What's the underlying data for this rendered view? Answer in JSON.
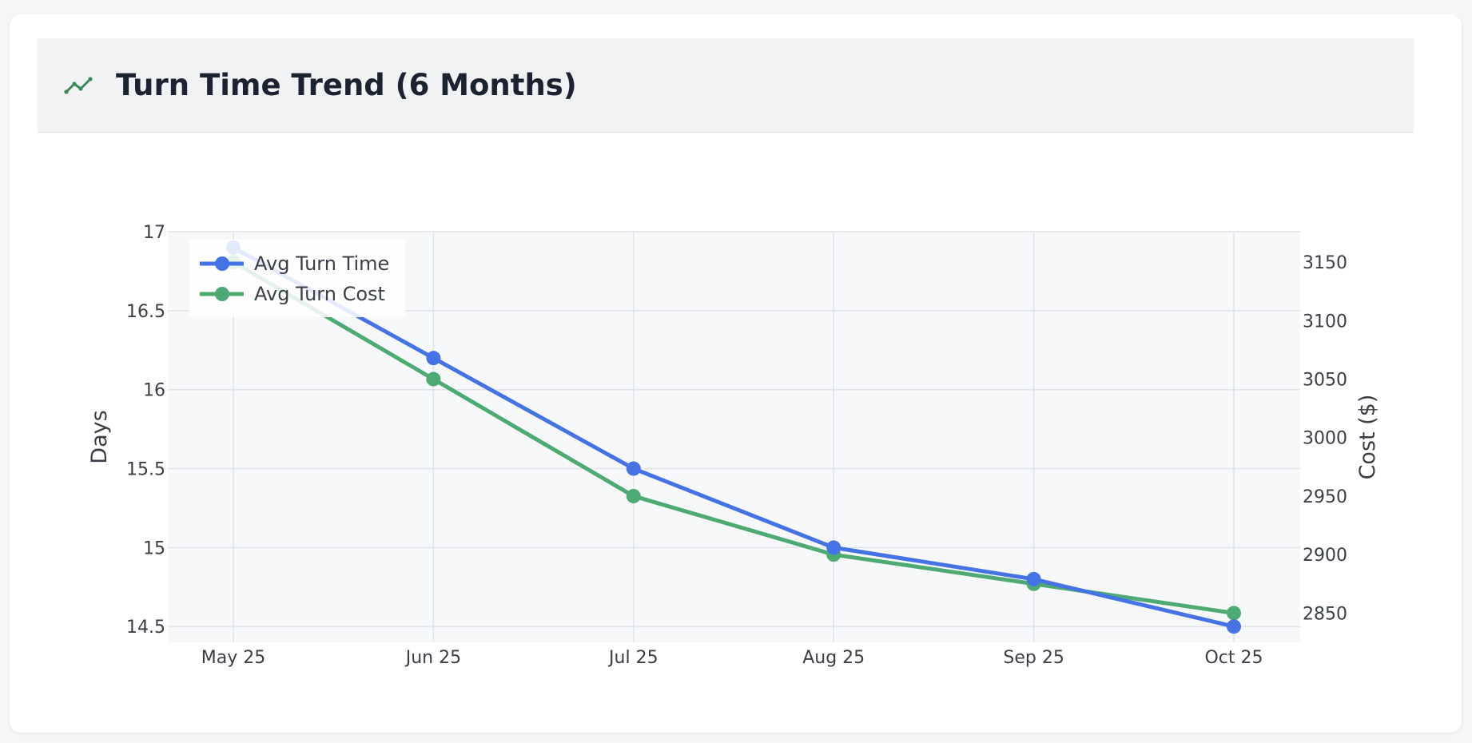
{
  "header": {
    "title": "Turn Time Trend (6 Months)",
    "icon": "line-chart-icon",
    "icon_color": "#3a8a5c"
  },
  "chart_data": {
    "type": "line",
    "title": "Turn Time Trend (6 Months)",
    "categories": [
      "May 25",
      "Jun 25",
      "Jul 25",
      "Aug 25",
      "Sep 25",
      "Oct 25"
    ],
    "series": [
      {
        "name": "Avg Turn Time",
        "axis": "left",
        "color": "#4573e6",
        "values": [
          16.9,
          16.2,
          15.5,
          15.0,
          14.8,
          14.5
        ]
      },
      {
        "name": "Avg Turn Cost",
        "axis": "right",
        "color": "#4caa72",
        "values": [
          3150,
          3050,
          2950,
          2900,
          2875,
          2850
        ]
      }
    ],
    "ylabel": "Days",
    "y2label": "Cost ($)",
    "ylim": [
      14.4,
      17
    ],
    "y2lim": [
      2825,
      3176
    ],
    "yticks": [
      "14.5",
      "15",
      "15.5",
      "16",
      "16.5",
      "17"
    ],
    "y2ticks": [
      "2850",
      "2900",
      "2950",
      "3000",
      "3050",
      "3100",
      "3150"
    ],
    "grid": true,
    "legend": "top-left"
  }
}
